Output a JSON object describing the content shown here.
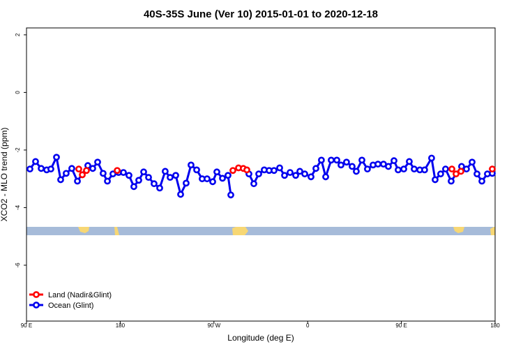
{
  "chart_data": {
    "type": "line",
    "title": "40S-35S June (Ver 10)   2015-01-01 to 2020-12-18",
    "x_label": "Longitude (deg E)",
    "y_label": "XCO2 - MLO trend (ppm)",
    "xlim": [
      90,
      540
    ],
    "ylim": [
      -7.94,
      2.24
    ],
    "xticks": [
      {
        "value": 90,
        "label": "90 E"
      },
      180,
      {
        "value": 270,
        "label": "90 W"
      },
      {
        "value": 360,
        "label": "0"
      },
      {
        "value": 450,
        "label": "90 E"
      },
      {
        "value": 540,
        "label": "180"
      }
    ],
    "yticks": [
      2,
      0,
      -2,
      -4,
      -6
    ],
    "legend": "bottom-left",
    "series": [
      {
        "name": "Land (Nadir&Glint)",
        "color": "#ff0000",
        "x": [
          140.2,
          143.6,
          147.6,
          177.1,
          288.2,
          293.6,
          298.2,
          301.6,
          498.5,
          502.5,
          507.2,
          537.3
        ],
        "values": [
          -2.66,
          -2.86,
          -2.71,
          -2.71,
          -2.71,
          -2.62,
          -2.64,
          -2.69,
          -2.66,
          -2.83,
          -2.74,
          -2.66
        ]
      },
      {
        "name": "Ocean (Glint)",
        "color": "#0000ee",
        "x": [
          93.3,
          98.7,
          104.1,
          109.4,
          113.4,
          118.8,
          122.8,
          128.1,
          133.5,
          138.9,
          148.9,
          153.6,
          158.3,
          163.6,
          167.7,
          173.0,
          178.4,
          183.1,
          188.4,
          193.1,
          197.8,
          202.5,
          207.2,
          212.5,
          217.9,
          223.2,
          227.9,
          233.3,
          238.0,
          243.3,
          248.0,
          253.4,
          258.7,
          263.4,
          268.8,
          272.8,
          278.2,
          283.5,
          286.2,
          303.6,
          308.3,
          313.0,
          318.3,
          323.0,
          327.7,
          333.1,
          337.8,
          343.1,
          348.5,
          352.5,
          357.2,
          363.2,
          367.9,
          373.2,
          377.3,
          382.6,
          388.0,
          392.0,
          397.3,
          402.7,
          406.7,
          412.1,
          417.4,
          422.8,
          427.5,
          432.8,
          437.5,
          442.9,
          446.9,
          452.3,
          457.6,
          462.3,
          467.7,
          472.3,
          479.0,
          482.4,
          487.7,
          492.4,
          497.8,
          507.8,
          512.5,
          517.9,
          522.6,
          527.3,
          532.6,
          537.3
        ],
        "values": [
          -2.66,
          -2.4,
          -2.64,
          -2.69,
          -2.66,
          -2.25,
          -3.03,
          -2.81,
          -2.64,
          -3.08,
          -2.54,
          -2.64,
          -2.42,
          -2.81,
          -3.08,
          -2.83,
          -2.78,
          -2.78,
          -2.88,
          -3.27,
          -3.05,
          -2.76,
          -2.95,
          -3.17,
          -3.32,
          -2.74,
          -2.95,
          -2.88,
          -3.54,
          -3.15,
          -2.52,
          -2.69,
          -3.0,
          -3.0,
          -3.1,
          -2.76,
          -2.98,
          -2.88,
          -3.56,
          -2.83,
          -3.17,
          -2.83,
          -2.69,
          -2.71,
          -2.71,
          -2.62,
          -2.88,
          -2.78,
          -2.88,
          -2.74,
          -2.83,
          -2.93,
          -2.64,
          -2.35,
          -2.93,
          -2.35,
          -2.35,
          -2.52,
          -2.42,
          -2.57,
          -2.74,
          -2.35,
          -2.66,
          -2.52,
          -2.49,
          -2.49,
          -2.57,
          -2.37,
          -2.69,
          -2.66,
          -2.4,
          -2.66,
          -2.69,
          -2.69,
          -2.28,
          -3.03,
          -2.83,
          -2.66,
          -3.08,
          -2.57,
          -2.66,
          -2.42,
          -2.83,
          -3.08,
          -2.83,
          -2.81
        ]
      }
    ]
  }
}
